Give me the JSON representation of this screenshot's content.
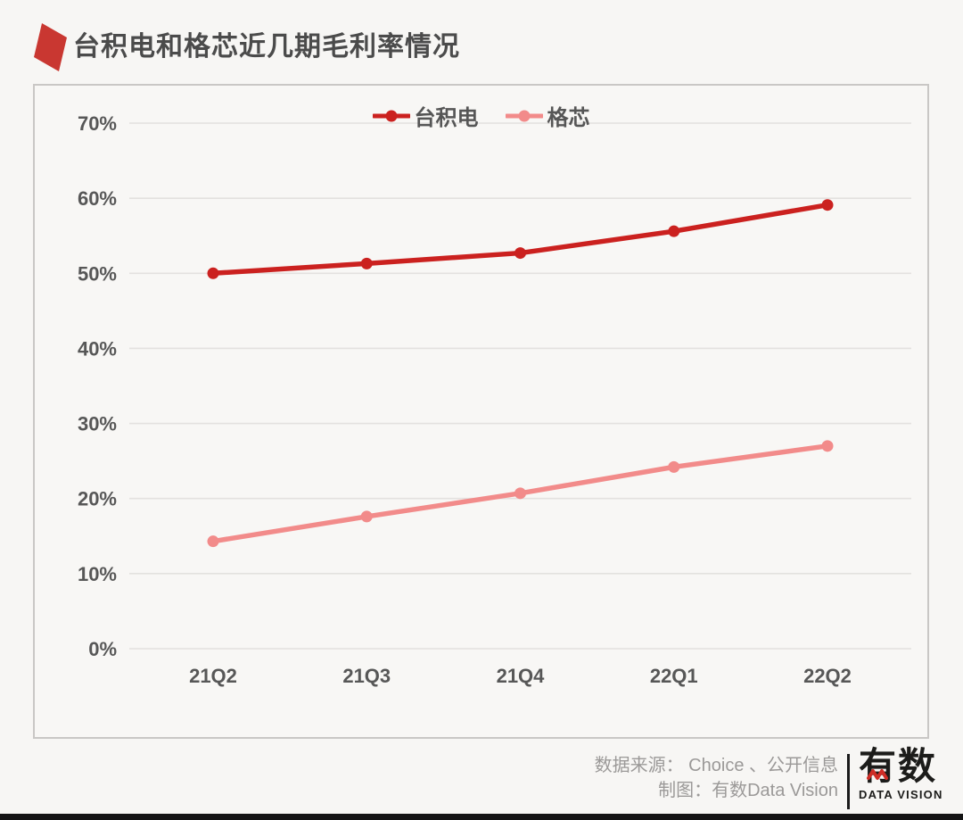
{
  "title": "台积电和格芯近几期毛利率情况",
  "colors": {
    "accent_marker": "#c93731",
    "series_tsmc": "#cb211f",
    "series_gf": "#f28b8a",
    "grid": "#e3e1df",
    "axis_text": "#575757",
    "panel_border": "#c9c7c5",
    "background": "#f7f6f4",
    "footer_text": "#9b9998",
    "logo_black": "#1c1c1a",
    "logo_zigzag_red": "#cf2d26",
    "bottom_bar": "#141414"
  },
  "icons": {
    "title_marker": "red-parallelogram-icon",
    "legend_marker": "line-dot-icon",
    "logo_mark": "zigzag-wave-icon"
  },
  "chart_data": {
    "type": "line",
    "title": "台积电和格芯近几期毛利率情况",
    "categories": [
      "21Q2",
      "21Q3",
      "21Q4",
      "22Q1",
      "22Q2"
    ],
    "series": [
      {
        "name": "台积电",
        "values": [
          50.0,
          51.3,
          52.7,
          55.6,
          59.1
        ],
        "color": "#cb211f"
      },
      {
        "name": "格芯",
        "values": [
          14.3,
          17.6,
          20.7,
          24.2,
          27.0
        ],
        "color": "#f28b8a"
      }
    ],
    "xlabel": "",
    "ylabel": "",
    "ylim": [
      0,
      70
    ],
    "ytick_step": 10,
    "ytick_suffix": "%",
    "grid": true,
    "legend_position": "top-center"
  },
  "footer": {
    "source_line": "数据来源：  Choice 、公开信息",
    "credit_line": "制图：有数Data Vision",
    "logo_text": "有数",
    "logo_subtext": "DATA VISION"
  }
}
